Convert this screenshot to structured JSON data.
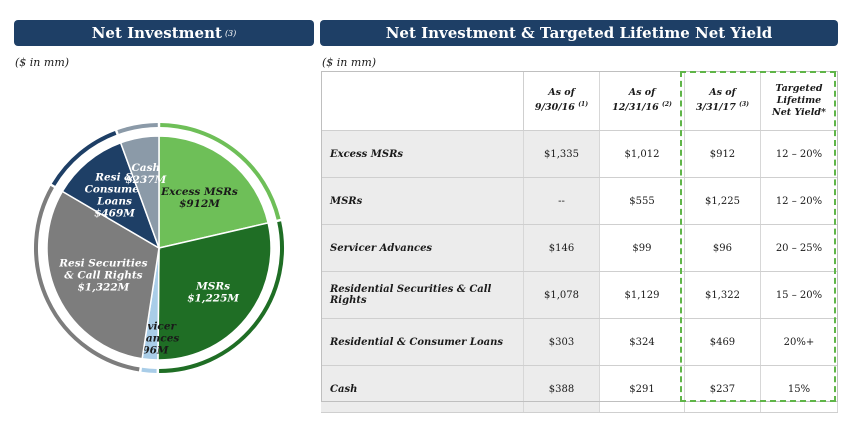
{
  "left_panel": {
    "title": "Net Investment",
    "title_note": "(3)",
    "units": "($ in mm)"
  },
  "right_panel": {
    "title": "Net Investment & Targeted Lifetime Net Yield",
    "units": "($ in mm)"
  },
  "chart_data": [
    {
      "type": "pie",
      "title": "Net Investment (3)",
      "units": "$M",
      "slices": [
        {
          "lines": [
            "Excess MSRs",
            "$912M"
          ],
          "value": 912,
          "color": "#6ebf58",
          "label_color": "#1a1a1a"
        },
        {
          "lines": [
            "MSRs",
            "$1,225M"
          ],
          "value": 1225,
          "color": "#1f6e25",
          "label_color": "#ffffff"
        },
        {
          "lines": [
            "Servicer",
            "Advances",
            "$96M"
          ],
          "value": 96,
          "color": "#a9cde8",
          "label_color": "#1a1a1a"
        },
        {
          "lines": [
            "Resi Securities",
            "& Call Rights",
            "$1,322M"
          ],
          "value": 1322,
          "color": "#7d7d7d",
          "label_color": "#ffffff"
        },
        {
          "lines": [
            "Resi &",
            "Consumer",
            "Loans",
            "$469M"
          ],
          "value": 469,
          "color": "#1e3f66",
          "label_color": "#ffffff"
        },
        {
          "lines": [
            "Cash",
            "$237M"
          ],
          "value": 237,
          "color": "#8b9aa8",
          "label_color": "#ffffff"
        }
      ]
    },
    {
      "type": "table",
      "columns": [
        {
          "line1": "As of",
          "line2": "9/30/16",
          "note": "(1)"
        },
        {
          "line1": "As of",
          "line2": "12/31/16",
          "note": "(2)"
        },
        {
          "line1": "As of",
          "line2": "3/31/17",
          "note": "(3)"
        },
        {
          "line1": "Targeted",
          "line2": "Lifetime",
          "line3": "Net Yield*"
        }
      ],
      "rows": [
        {
          "label": "Excess MSRs",
          "values": [
            "$1,335",
            "$1,012",
            "$912",
            "12 – 20%"
          ]
        },
        {
          "label": "MSRs",
          "values": [
            "--",
            "$555",
            "$1,225",
            "12 – 20%"
          ]
        },
        {
          "label": "Servicer Advances",
          "values": [
            "$146",
            "$99",
            "$96",
            "20 – 25%"
          ]
        },
        {
          "label": "Residential Securities & Call Rights",
          "values": [
            "$1,078",
            "$1,129",
            "$1,322",
            "15 – 20%"
          ]
        },
        {
          "label": "Residential & Consumer Loans",
          "values": [
            "$303",
            "$324",
            "$469",
            "20%+"
          ]
        },
        {
          "label": "Cash",
          "values": [
            "$388",
            "$291",
            "$237",
            "15%"
          ]
        }
      ]
    }
  ]
}
